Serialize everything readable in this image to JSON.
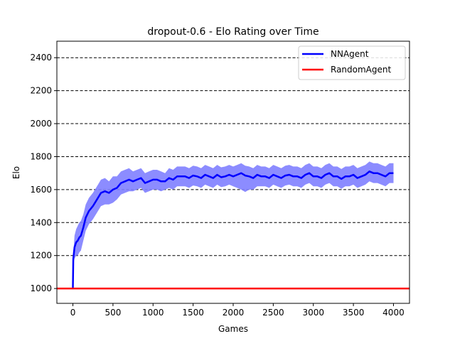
{
  "chart_data": {
    "type": "line",
    "title": "dropout-0.6 - Elo Rating over Time",
    "xlabel": "Games",
    "ylabel": "Elo",
    "xlim": [
      -200,
      4200
    ],
    "ylim": [
      910,
      2500
    ],
    "xticks": [
      0,
      500,
      1000,
      1500,
      2000,
      2500,
      3000,
      3500,
      4000
    ],
    "yticks": [
      1000,
      1200,
      1400,
      1600,
      1800,
      2000,
      2200,
      2400
    ],
    "grid": "horizontal dashed",
    "legend_position": "top-right",
    "series": [
      {
        "name": "NNAgent",
        "color": "#0000ff",
        "band_color": "#8080ff",
        "x": [
          0,
          5,
          20,
          40,
          60,
          80,
          100,
          130,
          160,
          200,
          250,
          300,
          350,
          400,
          450,
          500,
          550,
          600,
          650,
          700,
          750,
          800,
          850,
          900,
          950,
          1000,
          1050,
          1100,
          1150,
          1200,
          1250,
          1300,
          1350,
          1400,
          1450,
          1500,
          1550,
          1600,
          1650,
          1700,
          1750,
          1800,
          1850,
          1900,
          1950,
          2000,
          2050,
          2100,
          2150,
          2200,
          2250,
          2300,
          2350,
          2400,
          2450,
          2500,
          2550,
          2600,
          2650,
          2700,
          2750,
          2800,
          2850,
          2900,
          2950,
          3000,
          3050,
          3100,
          3150,
          3200,
          3250,
          3300,
          3350,
          3400,
          3450,
          3500,
          3550,
          3600,
          3650,
          3700,
          3750,
          3800,
          3850,
          3900,
          3950,
          4000
        ],
        "y": [
          1000,
          1180,
          1250,
          1280,
          1290,
          1310,
          1320,
          1370,
          1430,
          1470,
          1500,
          1540,
          1580,
          1590,
          1580,
          1600,
          1610,
          1640,
          1650,
          1660,
          1650,
          1660,
          1670,
          1640,
          1650,
          1660,
          1660,
          1650,
          1650,
          1670,
          1660,
          1680,
          1680,
          1680,
          1670,
          1685,
          1680,
          1670,
          1690,
          1680,
          1670,
          1690,
          1675,
          1680,
          1690,
          1680,
          1690,
          1700,
          1685,
          1680,
          1670,
          1690,
          1680,
          1680,
          1670,
          1690,
          1680,
          1670,
          1685,
          1690,
          1680,
          1680,
          1670,
          1690,
          1700,
          1680,
          1680,
          1670,
          1690,
          1700,
          1680,
          1680,
          1665,
          1680,
          1680,
          1690,
          1670,
          1680,
          1690,
          1710,
          1700,
          1700,
          1690,
          1680,
          1700,
          1700
        ],
        "lower": [
          1000,
          1150,
          1180,
          1200,
          1200,
          1220,
          1230,
          1290,
          1350,
          1390,
          1420,
          1460,
          1500,
          1510,
          1510,
          1520,
          1540,
          1570,
          1580,
          1590,
          1590,
          1600,
          1610,
          1580,
          1590,
          1600,
          1600,
          1590,
          1600,
          1610,
          1600,
          1620,
          1620,
          1620,
          1610,
          1625,
          1620,
          1610,
          1630,
          1620,
          1610,
          1630,
          1615,
          1620,
          1630,
          1620,
          1610,
          1600,
          1585,
          1600,
          1600,
          1620,
          1620,
          1620,
          1610,
          1630,
          1620,
          1610,
          1625,
          1630,
          1620,
          1620,
          1610,
          1630,
          1640,
          1620,
          1620,
          1610,
          1630,
          1640,
          1620,
          1620,
          1605,
          1620,
          1620,
          1630,
          1610,
          1620,
          1630,
          1650,
          1640,
          1640,
          1630,
          1620,
          1640,
          1640
        ],
        "upper": [
          1000,
          1210,
          1320,
          1360,
          1380,
          1400,
          1410,
          1450,
          1510,
          1550,
          1580,
          1620,
          1660,
          1670,
          1650,
          1680,
          1680,
          1710,
          1720,
          1730,
          1710,
          1720,
          1730,
          1700,
          1710,
          1720,
          1720,
          1710,
          1700,
          1730,
          1720,
          1740,
          1740,
          1740,
          1730,
          1745,
          1740,
          1730,
          1750,
          1740,
          1730,
          1750,
          1735,
          1740,
          1750,
          1740,
          1750,
          1760,
          1745,
          1740,
          1730,
          1750,
          1740,
          1740,
          1730,
          1750,
          1740,
          1730,
          1745,
          1750,
          1740,
          1740,
          1730,
          1750,
          1760,
          1740,
          1740,
          1730,
          1750,
          1760,
          1740,
          1740,
          1725,
          1740,
          1740,
          1750,
          1730,
          1740,
          1750,
          1770,
          1760,
          1760,
          1750,
          1740,
          1760,
          1760
        ]
      },
      {
        "name": "RandomAgent",
        "color": "#ff0000",
        "x": [
          -200,
          4200
        ],
        "y": [
          1000,
          1000
        ]
      }
    ]
  }
}
